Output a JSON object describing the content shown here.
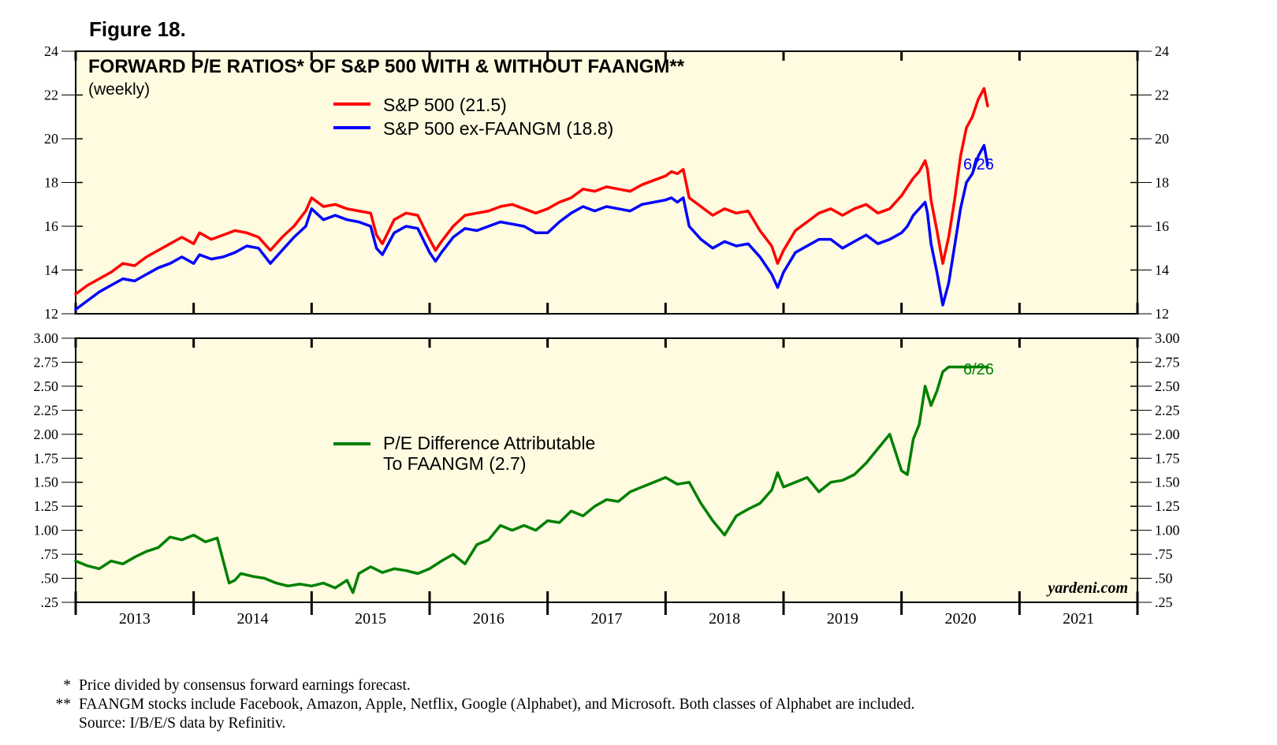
{
  "figure_label": "Figure 18.",
  "footnotes": [
    {
      "mark": "*",
      "text": "Price divided by consensus forward earnings forecast."
    },
    {
      "mark": "**",
      "text": "FAANGM stocks include Facebook, Amazon, Apple, Netflix, Google (Alphabet), and Microsoft. Both classes of Alphabet are included."
    },
    {
      "mark": "",
      "text": "Source: I/B/E/S data by Refinitiv."
    }
  ],
  "watermark": "yardeni.com",
  "colors": {
    "panel_bg": "#fffbe0",
    "red": "#ff0000",
    "blue": "#0000ff",
    "green": "#008000"
  },
  "chart_data": [
    {
      "type": "line",
      "title": "FORWARD P/E RATIOS* OF S&P 500 WITH & WITHOUT FAANGM**",
      "subtitle": "(weekly)",
      "ylim": [
        12,
        24
      ],
      "y_ticks": [
        12,
        14,
        16,
        18,
        20,
        22,
        24
      ],
      "y_tick_labels": [
        "12",
        "14",
        "16",
        "18",
        "20",
        "22",
        "24"
      ],
      "xlim": [
        2013.0,
        2022.0
      ],
      "legend_position": "top-center",
      "end_annotation": "6/26",
      "series": [
        {
          "name": "S&P 500 (21.5)",
          "color": "red",
          "x": [
            2013.0,
            2013.1,
            2013.2,
            2013.3,
            2013.4,
            2013.5,
            2013.6,
            2013.7,
            2013.8,
            2013.9,
            2014.0,
            2014.05,
            2014.15,
            2014.25,
            2014.35,
            2014.45,
            2014.55,
            2014.65,
            2014.75,
            2014.85,
            2014.95,
            2015.0,
            2015.1,
            2015.2,
            2015.3,
            2015.4,
            2015.5,
            2015.55,
            2015.6,
            2015.7,
            2015.8,
            2015.9,
            2016.0,
            2016.05,
            2016.1,
            2016.2,
            2016.3,
            2016.4,
            2016.5,
            2016.6,
            2016.7,
            2016.8,
            2016.9,
            2017.0,
            2017.1,
            2017.2,
            2017.3,
            2017.4,
            2017.5,
            2017.6,
            2017.7,
            2017.8,
            2017.9,
            2018.0,
            2018.05,
            2018.1,
            2018.15,
            2018.2,
            2018.3,
            2018.4,
            2018.5,
            2018.6,
            2018.7,
            2018.8,
            2018.9,
            2018.95,
            2019.0,
            2019.1,
            2019.2,
            2019.3,
            2019.4,
            2019.5,
            2019.6,
            2019.7,
            2019.8,
            2019.9,
            2020.0,
            2020.05,
            2020.1,
            2020.15,
            2020.2,
            2020.22,
            2020.25,
            2020.3,
            2020.35,
            2020.4,
            2020.45,
            2020.5,
            2020.55,
            2020.6,
            2020.65,
            2020.7,
            2020.73
          ],
          "values": [
            12.9,
            13.3,
            13.6,
            13.9,
            14.3,
            14.2,
            14.6,
            14.9,
            15.2,
            15.5,
            15.2,
            15.7,
            15.4,
            15.6,
            15.8,
            15.7,
            15.5,
            14.9,
            15.5,
            16.0,
            16.7,
            17.3,
            16.9,
            17.0,
            16.8,
            16.7,
            16.6,
            15.6,
            15.2,
            16.3,
            16.6,
            16.5,
            15.4,
            14.9,
            15.3,
            16.0,
            16.5,
            16.6,
            16.7,
            16.9,
            17.0,
            16.8,
            16.6,
            16.8,
            17.1,
            17.3,
            17.7,
            17.6,
            17.8,
            17.7,
            17.6,
            17.9,
            18.1,
            18.3,
            18.5,
            18.4,
            18.6,
            17.3,
            16.9,
            16.5,
            16.8,
            16.6,
            16.7,
            15.8,
            15.1,
            14.3,
            14.9,
            15.8,
            16.2,
            16.6,
            16.8,
            16.5,
            16.8,
            17.0,
            16.6,
            16.8,
            17.4,
            17.8,
            18.2,
            18.5,
            19.0,
            18.6,
            17.2,
            15.8,
            14.3,
            15.5,
            17.2,
            19.2,
            20.5,
            21.0,
            21.8,
            22.3,
            21.5
          ]
        },
        {
          "name": "S&P 500 ex-FAANGM (18.8)",
          "color": "blue",
          "x": [
            2013.0,
            2013.1,
            2013.2,
            2013.3,
            2013.4,
            2013.5,
            2013.6,
            2013.7,
            2013.8,
            2013.9,
            2014.0,
            2014.05,
            2014.15,
            2014.25,
            2014.35,
            2014.45,
            2014.55,
            2014.65,
            2014.75,
            2014.85,
            2014.95,
            2015.0,
            2015.1,
            2015.2,
            2015.3,
            2015.4,
            2015.5,
            2015.55,
            2015.6,
            2015.7,
            2015.8,
            2015.9,
            2016.0,
            2016.05,
            2016.1,
            2016.2,
            2016.3,
            2016.4,
            2016.5,
            2016.6,
            2016.7,
            2016.8,
            2016.9,
            2017.0,
            2017.1,
            2017.2,
            2017.3,
            2017.4,
            2017.5,
            2017.6,
            2017.7,
            2017.8,
            2017.9,
            2018.0,
            2018.05,
            2018.1,
            2018.15,
            2018.2,
            2018.3,
            2018.4,
            2018.5,
            2018.6,
            2018.7,
            2018.8,
            2018.9,
            2018.95,
            2019.0,
            2019.1,
            2019.2,
            2019.3,
            2019.4,
            2019.5,
            2019.6,
            2019.7,
            2019.8,
            2019.9,
            2020.0,
            2020.05,
            2020.1,
            2020.15,
            2020.2,
            2020.22,
            2020.25,
            2020.3,
            2020.35,
            2020.4,
            2020.45,
            2020.5,
            2020.55,
            2020.6,
            2020.65,
            2020.7,
            2020.73
          ],
          "values": [
            12.2,
            12.6,
            13.0,
            13.3,
            13.6,
            13.5,
            13.8,
            14.1,
            14.3,
            14.6,
            14.3,
            14.7,
            14.5,
            14.6,
            14.8,
            15.1,
            15.0,
            14.3,
            14.9,
            15.5,
            16.0,
            16.8,
            16.3,
            16.5,
            16.3,
            16.2,
            16.0,
            15.0,
            14.7,
            15.7,
            16.0,
            15.9,
            14.8,
            14.4,
            14.8,
            15.5,
            15.9,
            15.8,
            16.0,
            16.2,
            16.1,
            16.0,
            15.7,
            15.7,
            16.2,
            16.6,
            16.9,
            16.7,
            16.9,
            16.8,
            16.7,
            17.0,
            17.1,
            17.2,
            17.3,
            17.1,
            17.3,
            16.0,
            15.4,
            15.0,
            15.3,
            15.1,
            15.2,
            14.6,
            13.8,
            13.2,
            13.9,
            14.8,
            15.1,
            15.4,
            15.4,
            15.0,
            15.3,
            15.6,
            15.2,
            15.4,
            15.7,
            16.0,
            16.5,
            16.8,
            17.1,
            16.6,
            15.2,
            13.9,
            12.4,
            13.4,
            15.1,
            16.8,
            18.0,
            18.4,
            19.2,
            19.7,
            18.8
          ]
        }
      ]
    },
    {
      "type": "line",
      "ylim": [
        0.25,
        3.0
      ],
      "y_ticks": [
        0.25,
        0.5,
        0.75,
        1.0,
        1.25,
        1.5,
        1.75,
        2.0,
        2.25,
        2.5,
        2.75,
        3.0
      ],
      "y_tick_labels": [
        ".25",
        ".50",
        ".75",
        "1.00",
        "1.25",
        "1.50",
        "1.75",
        "2.00",
        "2.25",
        "2.50",
        "2.75",
        "3.00"
      ],
      "xlim": [
        2013.0,
        2022.0
      ],
      "x_tick_labels": [
        "2013",
        "2014",
        "2015",
        "2016",
        "2017",
        "2018",
        "2019",
        "2020",
        "2021"
      ],
      "legend_position": "center-left",
      "end_annotation": "6/26",
      "series": [
        {
          "name": "P/E Difference Attributable To FAANGM (2.7)",
          "color": "green",
          "legend_lines": [
            "P/E Difference Attributable",
            "To FAANGM (2.7)"
          ],
          "x": [
            2013.0,
            2013.1,
            2013.2,
            2013.3,
            2013.4,
            2013.5,
            2013.6,
            2013.7,
            2013.8,
            2013.9,
            2014.0,
            2014.1,
            2014.2,
            2014.3,
            2014.35,
            2014.4,
            2014.5,
            2014.6,
            2014.7,
            2014.8,
            2014.9,
            2015.0,
            2015.1,
            2015.2,
            2015.3,
            2015.35,
            2015.4,
            2015.5,
            2015.6,
            2015.7,
            2015.8,
            2015.9,
            2016.0,
            2016.1,
            2016.2,
            2016.3,
            2016.4,
            2016.5,
            2016.6,
            2016.7,
            2016.8,
            2016.9,
            2017.0,
            2017.1,
            2017.2,
            2017.3,
            2017.4,
            2017.5,
            2017.6,
            2017.7,
            2017.8,
            2017.9,
            2018.0,
            2018.1,
            2018.2,
            2018.3,
            2018.4,
            2018.5,
            2018.6,
            2018.7,
            2018.8,
            2018.9,
            2018.95,
            2019.0,
            2019.1,
            2019.2,
            2019.3,
            2019.4,
            2019.5,
            2019.6,
            2019.7,
            2019.8,
            2019.9,
            2020.0,
            2020.05,
            2020.1,
            2020.15,
            2020.2,
            2020.25,
            2020.3,
            2020.35,
            2020.4,
            2020.45,
            2020.5,
            2020.55,
            2020.6,
            2020.65,
            2020.7,
            2020.73
          ],
          "values": [
            0.68,
            0.63,
            0.6,
            0.68,
            0.65,
            0.72,
            0.78,
            0.82,
            0.93,
            0.9,
            0.95,
            0.88,
            0.92,
            0.45,
            0.48,
            0.55,
            0.52,
            0.5,
            0.45,
            0.42,
            0.44,
            0.42,
            0.45,
            0.4,
            0.48,
            0.35,
            0.55,
            0.62,
            0.56,
            0.6,
            0.58,
            0.55,
            0.6,
            0.68,
            0.75,
            0.65,
            0.85,
            0.9,
            1.05,
            1.0,
            1.05,
            1.0,
            1.1,
            1.08,
            1.2,
            1.15,
            1.25,
            1.32,
            1.3,
            1.4,
            1.45,
            1.5,
            1.55,
            1.48,
            1.5,
            1.28,
            1.1,
            0.95,
            1.15,
            1.22,
            1.28,
            1.42,
            1.6,
            1.45,
            1.5,
            1.55,
            1.4,
            1.5,
            1.52,
            1.58,
            1.7,
            1.85,
            2.0,
            1.62,
            1.58,
            1.95,
            2.1,
            2.5,
            2.3,
            2.45,
            2.65,
            2.7,
            2.7,
            2.7,
            2.7,
            2.7,
            2.7,
            2.7,
            2.7
          ]
        }
      ]
    }
  ]
}
